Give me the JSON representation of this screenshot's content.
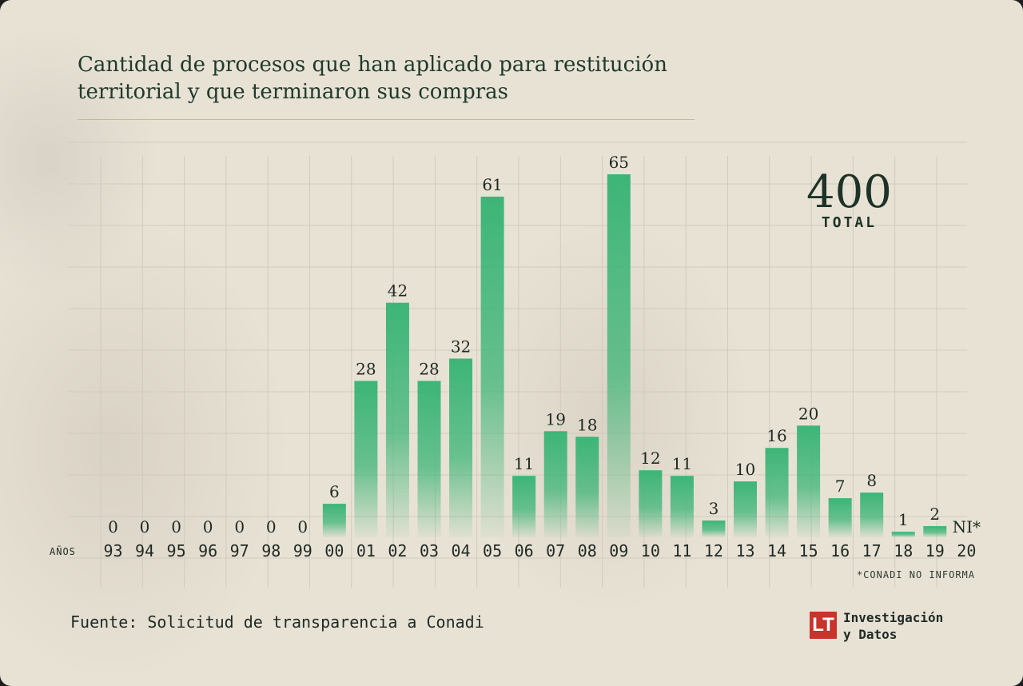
{
  "title": "Cantidad de procesos que han aplicado para restitución territorial y que terminaron sus compras",
  "total": {
    "value": "400",
    "label": "TOTAL"
  },
  "footnote": "*CONADI NO INFORMA",
  "source": "Fuente: Solicitud de transparencia a Conadi",
  "brand": {
    "mark": "LT",
    "line1": "Investigación",
    "line2": "y Datos",
    "mark_color": "#c9332b"
  },
  "chart_data": {
    "type": "bar",
    "title": "Cantidad de procesos que han aplicado para restitución territorial y que terminaron sus compras",
    "xlabel": "AÑOS",
    "ylabel": "",
    "categories": [
      "93",
      "94",
      "95",
      "96",
      "97",
      "98",
      "99",
      "00",
      "01",
      "02",
      "03",
      "04",
      "05",
      "06",
      "07",
      "08",
      "09",
      "10",
      "11",
      "12",
      "13",
      "14",
      "15",
      "16",
      "17",
      "18",
      "19",
      "20"
    ],
    "values": [
      0,
      0,
      0,
      0,
      0,
      0,
      0,
      6,
      28,
      42,
      28,
      32,
      61,
      11,
      19,
      18,
      65,
      12,
      11,
      3,
      10,
      16,
      20,
      7,
      8,
      1,
      2,
      null
    ],
    "value_labels": [
      "0",
      "0",
      "0",
      "0",
      "0",
      "0",
      "0",
      "6",
      "28",
      "42",
      "28",
      "32",
      "61",
      "11",
      "19",
      "18",
      "65",
      "12",
      "11",
      "3",
      "10",
      "16",
      "20",
      "7",
      "8",
      "1",
      "2",
      "NI*"
    ],
    "ylim": [
      0,
      65
    ],
    "grid": true,
    "bar_color": "#3db577",
    "bar_color_fade": "#e8e2d5"
  }
}
